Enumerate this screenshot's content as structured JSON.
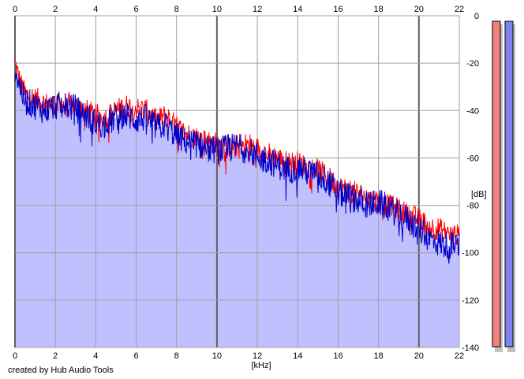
{
  "credit": "created by Hub Audio Tools",
  "chart_data": {
    "type": "area",
    "xlabel": "[kHz]",
    "ylabel": "[dB]",
    "xlim": [
      0,
      22
    ],
    "ylim": [
      -140,
      0
    ],
    "x_ticks": [
      0,
      2,
      4,
      6,
      8,
      10,
      12,
      14,
      16,
      18,
      20,
      22
    ],
    "y_ticks": [
      0,
      -20,
      -40,
      -60,
      -80,
      -100,
      -120,
      -140
    ],
    "grid": true,
    "series": [
      {
        "color": "#ff0000",
        "x": [
          0.0,
          0.25,
          0.5,
          1.0,
          1.5,
          2.0,
          2.5,
          3.0,
          3.5,
          4.0,
          4.5,
          5.0,
          5.5,
          6.0,
          6.5,
          7.0,
          7.5,
          8.0,
          8.5,
          9.0,
          9.5,
          10.0,
          10.5,
          11.0,
          11.5,
          12.0,
          12.5,
          13.0,
          13.5,
          14.0,
          14.5,
          15.0,
          15.5,
          16.0,
          16.5,
          17.0,
          17.5,
          18.0,
          18.5,
          19.0,
          19.5,
          20.0,
          20.5,
          21.0,
          21.5,
          22.0
        ],
        "y": [
          -20,
          -28,
          -33,
          -35,
          -37,
          -38,
          -37,
          -38,
          -40,
          -42,
          -43,
          -40,
          -38,
          -39,
          -40,
          -44,
          -42,
          -47,
          -50,
          -51,
          -53,
          -54,
          -55,
          -55,
          -54,
          -56,
          -58,
          -60,
          -62,
          -62,
          -64,
          -65,
          -68,
          -72,
          -74,
          -75,
          -77,
          -78,
          -80,
          -82,
          -84,
          -86,
          -89,
          -90,
          -92,
          -93
        ]
      },
      {
        "color": "#0000c8",
        "x": [
          0.0,
          0.25,
          0.5,
          1.0,
          1.5,
          2.0,
          2.5,
          3.0,
          3.5,
          4.0,
          4.5,
          5.0,
          5.5,
          6.0,
          6.5,
          7.0,
          7.5,
          8.0,
          8.5,
          9.0,
          9.5,
          10.0,
          10.5,
          11.0,
          11.5,
          12.0,
          12.5,
          13.0,
          13.5,
          14.0,
          14.5,
          15.0,
          15.5,
          16.0,
          16.5,
          17.0,
          17.5,
          18.0,
          18.5,
          19.0,
          19.5,
          20.0,
          20.5,
          21.0,
          21.5,
          22.0
        ],
        "y": [
          -22,
          -30,
          -36,
          -38,
          -40,
          -38,
          -38,
          -39,
          -42,
          -45,
          -46,
          -43,
          -42,
          -44,
          -43,
          -47,
          -46,
          -51,
          -53,
          -54,
          -56,
          -57,
          -56,
          -55,
          -57,
          -59,
          -61,
          -63,
          -65,
          -64,
          -66,
          -67,
          -70,
          -75,
          -76,
          -78,
          -80,
          -79,
          -81,
          -84,
          -86,
          -90,
          -94,
          -96,
          -97,
          -97
        ]
      }
    ],
    "area_fill": "#c0c0ff",
    "level_meters": [
      {
        "channel": "left",
        "color": "#f08080"
      },
      {
        "channel": "right",
        "color": "#8080f0"
      }
    ]
  }
}
